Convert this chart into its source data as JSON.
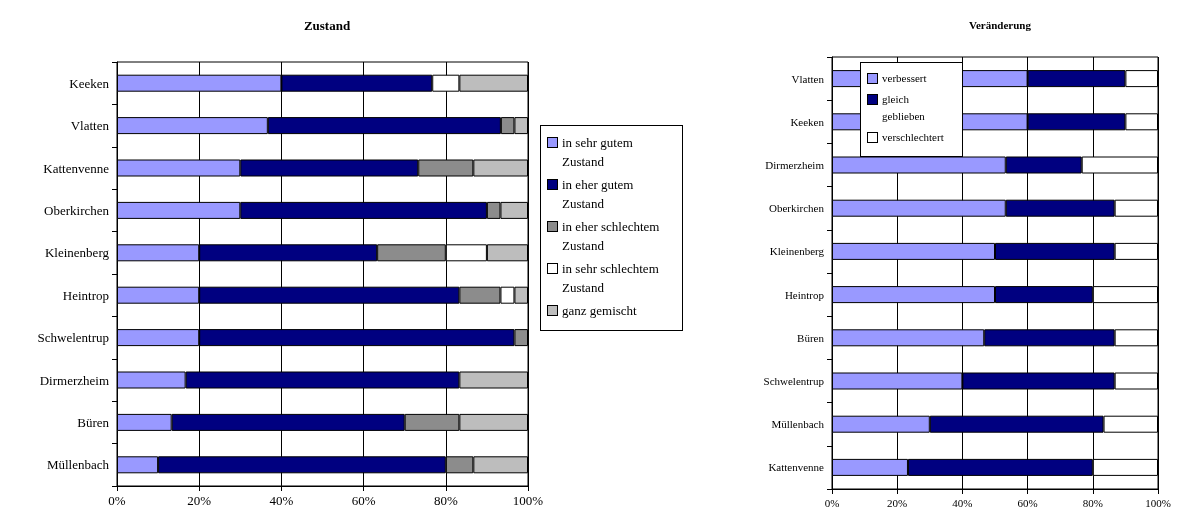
{
  "chart_data": [
    {
      "type": "bar",
      "title": "Zustand",
      "orientation": "horizontal",
      "stacked": true,
      "categories": [
        "Keeken",
        "Vlatten",
        "Kattenvenne",
        "Oberkirchen",
        "Kleinenberg",
        "Heintrop",
        "Schwelentrup",
        "Dirmerzheim",
        "Büren",
        "Müllenbach"
      ],
      "series": [
        {
          "name": "in sehr gutem Zustand",
          "color": "#9999ff",
          "values": [
            40,
            36.7,
            30,
            30,
            20,
            20,
            20,
            16.7,
            13.3,
            10
          ]
        },
        {
          "name": "in eher gutem Zustand",
          "color": "#000080",
          "values": [
            36.7,
            56.7,
            43.3,
            60,
            43.3,
            63.3,
            76.7,
            66.6,
            56.7,
            70
          ]
        },
        {
          "name": "in eher schlechtem Zustand",
          "color": "#8c8c8c",
          "values": [
            0,
            3.3,
            13.4,
            3.3,
            16.7,
            10,
            3.3,
            0,
            13.3,
            6.7
          ]
        },
        {
          "name": "in sehr schlechtem Zustand",
          "color": "#ffffff",
          "values": [
            6.6,
            0,
            0,
            0,
            10,
            3.4,
            0,
            0,
            0,
            0
          ]
        },
        {
          "name": "ganz gemischt",
          "color": "#bdbdbd",
          "values": [
            16.7,
            3.3,
            13.3,
            6.7,
            10,
            3.3,
            0,
            16.7,
            16.7,
            13.3
          ]
        }
      ],
      "xlim": [
        0,
        100
      ],
      "xticks": [
        {
          "value": 0,
          "label": "0%"
        },
        {
          "value": 20,
          "label": "20%"
        },
        {
          "value": 40,
          "label": "40%"
        },
        {
          "value": 60,
          "label": "60%"
        },
        {
          "value": 80,
          "label": "80%"
        },
        {
          "value": 100,
          "label": "100%"
        }
      ],
      "grid": "x",
      "legend": "right"
    },
    {
      "type": "bar",
      "title": "Veränderung",
      "orientation": "horizontal",
      "stacked": true,
      "categories": [
        "Vlatten",
        "Keeken",
        "Dirmerzheim",
        "Oberkirchen",
        "Kleinenberg",
        "Heintrop",
        "Büren",
        "Schwelentrup",
        "Müllenbach",
        "Kattenvenne"
      ],
      "series": [
        {
          "name": "verbessert",
          "color": "#9999ff",
          "values": [
            60,
            60,
            53.3,
            53.3,
            50,
            50,
            46.7,
            40,
            30,
            23.3
          ]
        },
        {
          "name": "gleich geblieben",
          "color": "#000080",
          "values": [
            30,
            30,
            23.3,
            33.4,
            36.7,
            30,
            40,
            46.7,
            53.3,
            56.7
          ]
        },
        {
          "name": "verschlechtert",
          "color": "#ffffff",
          "values": [
            10,
            10,
            23.4,
            13.3,
            13.3,
            20,
            13.3,
            13.3,
            16.7,
            20
          ]
        }
      ],
      "xlim": [
        0,
        100
      ],
      "xticks": [
        {
          "value": 0,
          "label": "0%"
        },
        {
          "value": 20,
          "label": "20%"
        },
        {
          "value": 40,
          "label": "40%"
        },
        {
          "value": 60,
          "label": "60%"
        },
        {
          "value": 80,
          "label": "80%"
        },
        {
          "value": 100,
          "label": "100%"
        }
      ],
      "grid": "x",
      "legend": "top left"
    }
  ]
}
